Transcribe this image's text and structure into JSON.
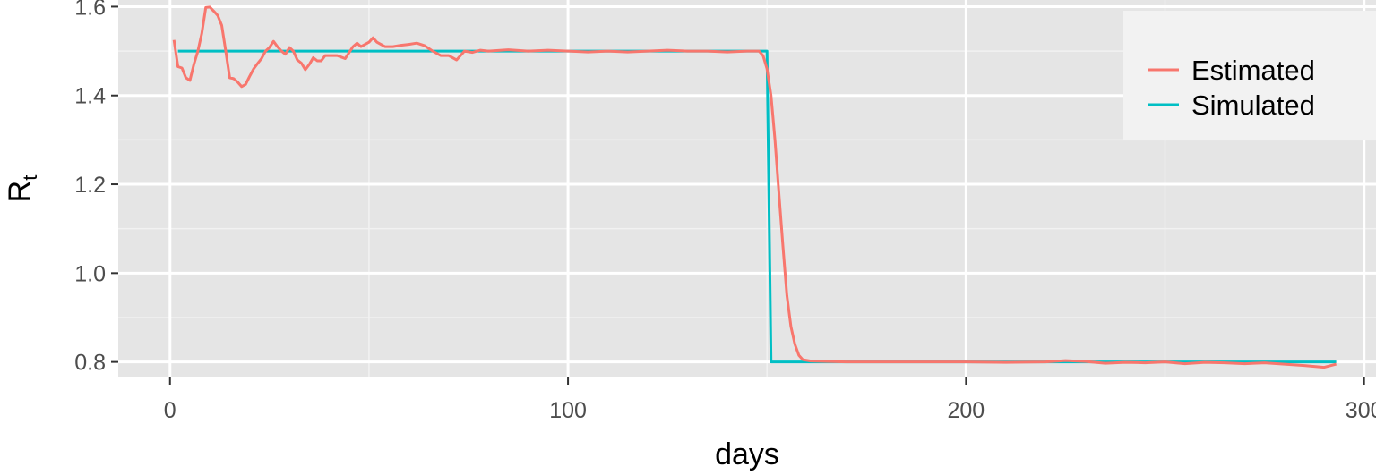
{
  "chart_data": {
    "type": "line",
    "title": "",
    "xlabel": "days",
    "ylabel": "R",
    "ylabel_subscript": "t",
    "xlim": [
      -13,
      303
    ],
    "ylim": [
      0.765,
      1.615
    ],
    "x_ticks": [
      0,
      100,
      200,
      300
    ],
    "x_tick_labels": [
      "0",
      "100",
      "200",
      "300"
    ],
    "y_ticks": [
      0.8,
      1.0,
      1.2,
      1.4,
      1.6
    ],
    "y_tick_labels": [
      "0.8",
      "1.0",
      "1.2",
      "1.4",
      "1.6"
    ],
    "grid": true,
    "legend_position": "top-right",
    "series": [
      {
        "name": "Estimated",
        "color": "#F8766D",
        "points": [
          [
            1,
            1.525
          ],
          [
            2,
            1.465
          ],
          [
            3,
            1.462
          ],
          [
            4,
            1.44
          ],
          [
            5,
            1.434
          ],
          [
            6,
            1.47
          ],
          [
            7,
            1.5
          ],
          [
            8,
            1.54
          ],
          [
            9,
            1.598
          ],
          [
            10,
            1.599
          ],
          [
            11,
            1.59
          ],
          [
            12,
            1.58
          ],
          [
            13,
            1.558
          ],
          [
            14,
            1.5
          ],
          [
            15,
            1.44
          ],
          [
            16,
            1.438
          ],
          [
            17,
            1.43
          ],
          [
            18,
            1.42
          ],
          [
            19,
            1.425
          ],
          [
            20,
            1.443
          ],
          [
            21,
            1.46
          ],
          [
            22,
            1.472
          ],
          [
            23,
            1.483
          ],
          [
            24,
            1.5
          ],
          [
            25,
            1.508
          ],
          [
            26,
            1.522
          ],
          [
            27,
            1.51
          ],
          [
            28,
            1.5
          ],
          [
            29,
            1.493
          ],
          [
            30,
            1.508
          ],
          [
            31,
            1.5
          ],
          [
            32,
            1.48
          ],
          [
            33,
            1.473
          ],
          [
            34,
            1.458
          ],
          [
            35,
            1.47
          ],
          [
            36,
            1.485
          ],
          [
            37,
            1.478
          ],
          [
            38,
            1.478
          ],
          [
            39,
            1.49
          ],
          [
            40,
            1.49
          ],
          [
            42,
            1.49
          ],
          [
            44,
            1.483
          ],
          [
            46,
            1.51
          ],
          [
            47,
            1.518
          ],
          [
            48,
            1.51
          ],
          [
            50,
            1.52
          ],
          [
            51,
            1.53
          ],
          [
            52,
            1.52
          ],
          [
            54,
            1.51
          ],
          [
            56,
            1.51
          ],
          [
            58,
            1.513
          ],
          [
            60,
            1.515
          ],
          [
            62,
            1.518
          ],
          [
            64,
            1.512
          ],
          [
            66,
            1.5
          ],
          [
            68,
            1.49
          ],
          [
            70,
            1.49
          ],
          [
            72,
            1.48
          ],
          [
            74,
            1.5
          ],
          [
            76,
            1.497
          ],
          [
            78,
            1.502
          ],
          [
            80,
            1.5
          ],
          [
            85,
            1.503
          ],
          [
            90,
            1.5
          ],
          [
            95,
            1.502
          ],
          [
            100,
            1.5
          ],
          [
            105,
            1.498
          ],
          [
            110,
            1.5
          ],
          [
            115,
            1.498
          ],
          [
            120,
            1.5
          ],
          [
            125,
            1.502
          ],
          [
            130,
            1.5
          ],
          [
            135,
            1.5
          ],
          [
            140,
            1.498
          ],
          [
            145,
            1.5
          ],
          [
            148,
            1.5
          ],
          [
            149,
            1.49
          ],
          [
            150,
            1.46
          ],
          [
            151,
            1.4
          ],
          [
            152,
            1.3
          ],
          [
            153,
            1.18
          ],
          [
            154,
            1.06
          ],
          [
            155,
            0.95
          ],
          [
            156,
            0.88
          ],
          [
            157,
            0.84
          ],
          [
            158,
            0.815
          ],
          [
            159,
            0.805
          ],
          [
            161,
            0.802
          ],
          [
            165,
            0.801
          ],
          [
            170,
            0.8
          ],
          [
            180,
            0.8
          ],
          [
            190,
            0.8
          ],
          [
            200,
            0.8
          ],
          [
            210,
            0.799
          ],
          [
            220,
            0.8
          ],
          [
            225,
            0.803
          ],
          [
            230,
            0.801
          ],
          [
            235,
            0.797
          ],
          [
            240,
            0.799
          ],
          [
            245,
            0.798
          ],
          [
            250,
            0.8
          ],
          [
            255,
            0.796
          ],
          [
            260,
            0.799
          ],
          [
            265,
            0.798
          ],
          [
            270,
            0.796
          ],
          [
            275,
            0.798
          ],
          [
            280,
            0.795
          ],
          [
            285,
            0.792
          ],
          [
            290,
            0.788
          ],
          [
            293,
            0.795
          ]
        ]
      },
      {
        "name": "Simulated",
        "color": "#00BFC4",
        "points": [
          [
            2,
            1.5
          ],
          [
            150,
            1.5
          ],
          [
            151,
            0.8
          ],
          [
            293,
            0.8
          ]
        ]
      }
    ]
  }
}
